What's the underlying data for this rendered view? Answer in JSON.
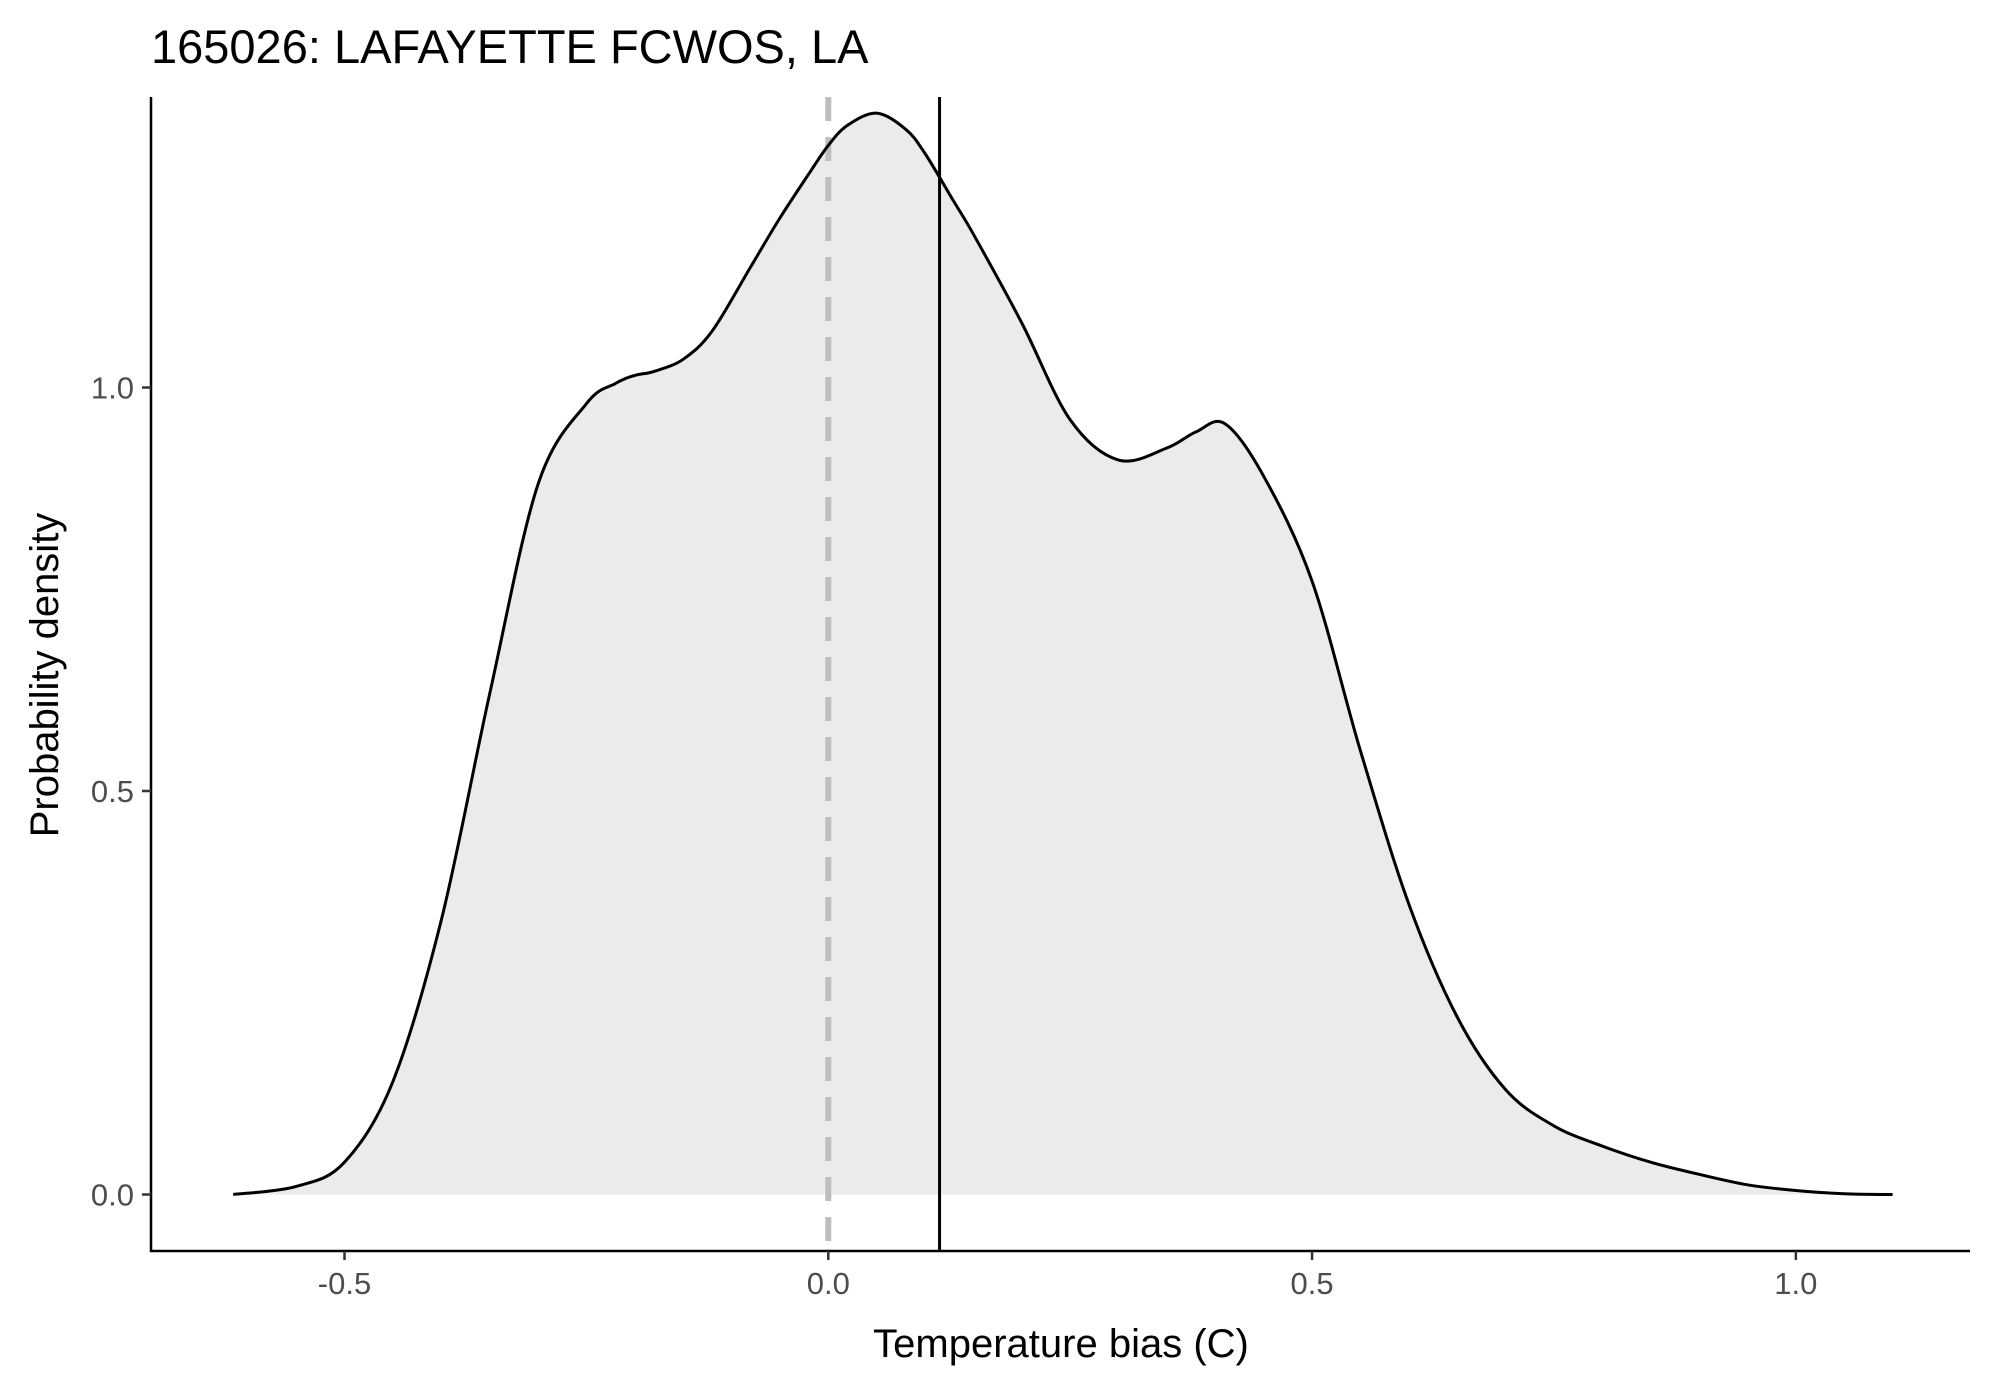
{
  "chart_data": {
    "type": "area",
    "title": "165026: LAFAYETTE FCWOS, LA",
    "xlabel": "Temperature bias (C)",
    "ylabel": "Probability density",
    "xlim": [
      -0.7,
      1.18
    ],
    "ylim": [
      -0.07,
      1.36
    ],
    "x_ticks": [
      -0.5,
      0.0,
      0.5,
      1.0
    ],
    "x_tick_labels": [
      "-0.5",
      "0.0",
      "0.5",
      "1.0"
    ],
    "y_ticks": [
      0.0,
      0.5,
      1.0
    ],
    "y_tick_labels": [
      "0.0",
      "0.5",
      "1.0"
    ],
    "grid": false,
    "fill_color": "#ebebeb",
    "line_color": "#000000",
    "reference_lines": [
      {
        "x": 0.0,
        "style": "dashed",
        "color": "#bebebe"
      },
      {
        "x": 0.115,
        "style": "solid",
        "color": "#000000"
      }
    ],
    "series": [
      {
        "x": [
          -0.615,
          -0.55,
          -0.5,
          -0.45,
          -0.4,
          -0.35,
          -0.3,
          -0.25,
          -0.22,
          -0.2,
          -0.18,
          -0.15,
          -0.12,
          -0.08,
          -0.05,
          -0.02,
          0.0,
          0.02,
          0.05,
          0.08,
          0.1,
          0.13,
          0.15,
          0.2,
          0.25,
          0.3,
          0.35,
          0.38,
          0.41,
          0.45,
          0.5,
          0.55,
          0.6,
          0.65,
          0.7,
          0.75,
          0.8,
          0.85,
          0.9,
          0.95,
          1.0,
          1.05,
          1.1
        ],
        "y": [
          0.0,
          0.01,
          0.04,
          0.14,
          0.34,
          0.62,
          0.88,
          0.98,
          1.005,
          1.015,
          1.02,
          1.035,
          1.07,
          1.15,
          1.21,
          1.265,
          1.3,
          1.325,
          1.34,
          1.32,
          1.29,
          1.23,
          1.19,
          1.08,
          0.96,
          0.91,
          0.925,
          0.945,
          0.955,
          0.89,
          0.76,
          0.55,
          0.36,
          0.22,
          0.13,
          0.085,
          0.06,
          0.04,
          0.025,
          0.012,
          0.005,
          0.001,
          0.0
        ]
      }
    ]
  }
}
